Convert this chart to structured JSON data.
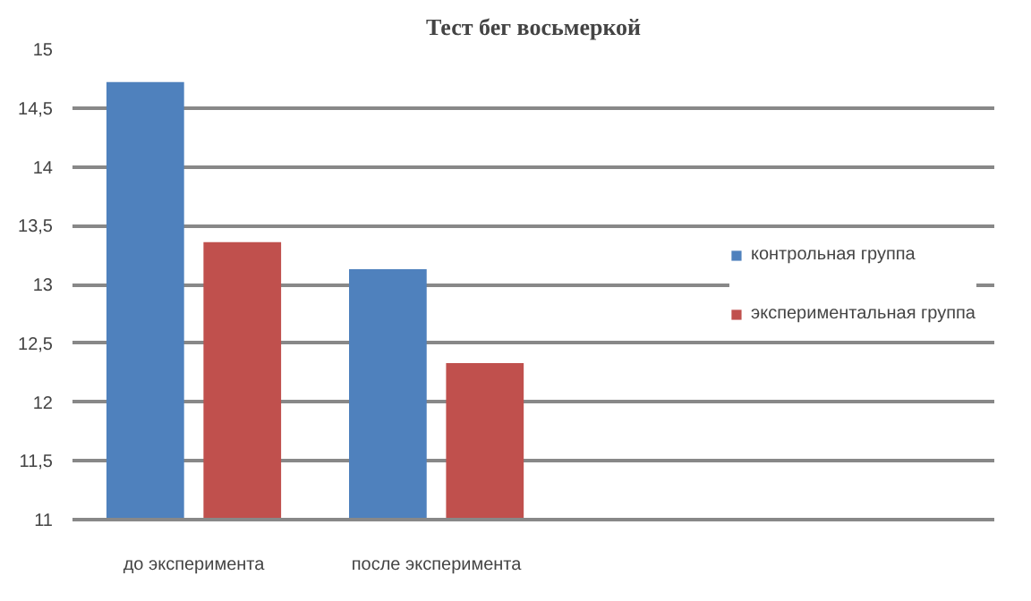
{
  "chart_data": {
    "type": "bar",
    "title": "Тест бег восьмеркой",
    "categories": [
      "до эксперимента",
      "после эксперимента"
    ],
    "series": [
      {
        "name": "контрольная группа",
        "color": "#4f81bd",
        "values": [
          14.72,
          13.13
        ]
      },
      {
        "name": "экспериментальная группа",
        "color": "#c0504d",
        "values": [
          13.36,
          12.33
        ]
      }
    ],
    "ylim": [
      11,
      15
    ],
    "yticks": [
      11,
      {
        "value": 11.5,
        "label": "11,5"
      },
      12,
      {
        "value": 12.5,
        "label": "12,5"
      },
      13,
      {
        "value": 13.5,
        "label": "13,5"
      },
      14,
      {
        "value": 14.5,
        "label": "14,5"
      },
      15
    ],
    "grid": "y",
    "legend": "right"
  }
}
